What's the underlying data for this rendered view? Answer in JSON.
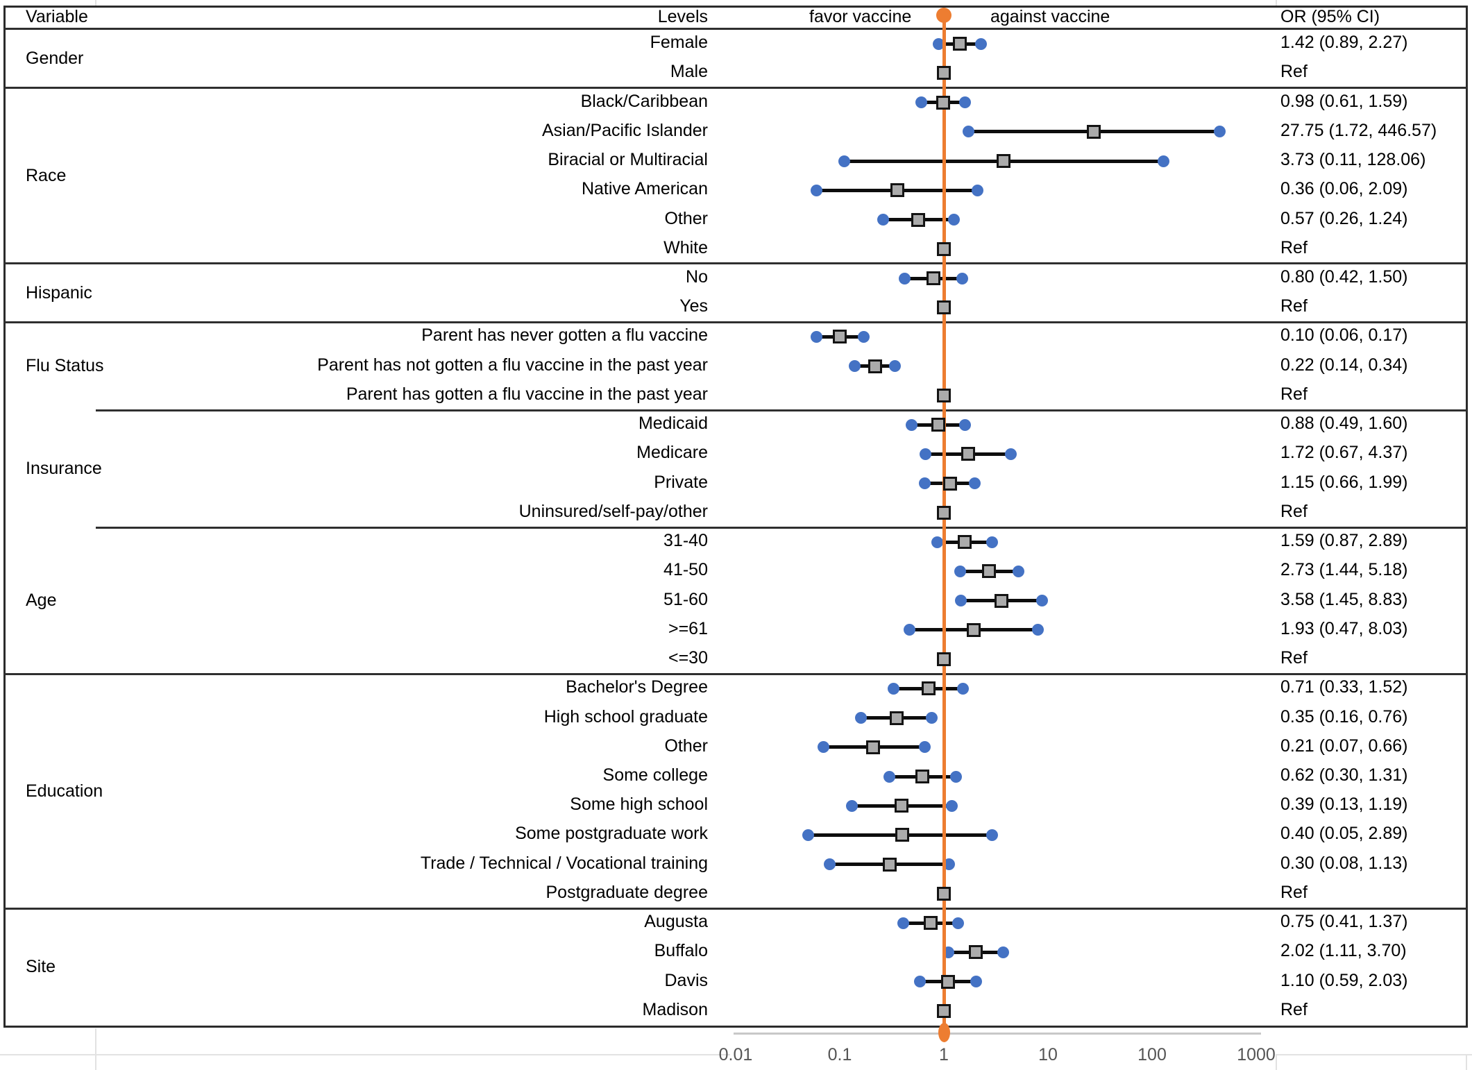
{
  "header": {
    "variable": "Variable",
    "levels": "Levels",
    "favor": "favor vaccine",
    "against": "against vaccine",
    "or_ci": "OR (95% CI)"
  },
  "chart_data": {
    "type": "scatter",
    "variant": "forest-plot",
    "x_scale": "log10",
    "x_axis_range": [
      0.01,
      1000
    ],
    "x_ticks": [
      0.01,
      0.1,
      1,
      10,
      100,
      1000
    ],
    "x_tick_labels": [
      "0.01",
      "0.1",
      "1",
      "10",
      "100",
      "1000"
    ],
    "reference_line_x": 1,
    "legend": {
      "left_of_line": "favor vaccine",
      "right_of_line": "against vaccine"
    },
    "sections": [
      {
        "variable": "Gender",
        "separator_after": "full",
        "rows": [
          {
            "level": "Female",
            "or": 1.42,
            "lo": 0.89,
            "hi": 2.27,
            "or_text": "1.42 (0.89, 2.27)"
          },
          {
            "level": "Male",
            "ref": true,
            "or": 1,
            "or_text": "Ref"
          }
        ]
      },
      {
        "variable": "Race",
        "separator_after": "full",
        "rows": [
          {
            "level": "Black/Caribbean",
            "or": 0.98,
            "lo": 0.61,
            "hi": 1.59,
            "or_text": "0.98 (0.61, 1.59)"
          },
          {
            "level": "Asian/Pacific Islander",
            "or": 27.75,
            "lo": 1.72,
            "hi": 446.57,
            "or_text": "27.75 (1.72, 446.57)"
          },
          {
            "level": "Biracial or Multiracial",
            "or": 3.73,
            "lo": 0.11,
            "hi": 128.06,
            "or_text": "3.73 (0.11, 128.06)"
          },
          {
            "level": "Native American",
            "or": 0.36,
            "lo": 0.06,
            "hi": 2.09,
            "or_text": "0.36 (0.06, 2.09)"
          },
          {
            "level": "Other",
            "or": 0.57,
            "lo": 0.26,
            "hi": 1.24,
            "or_text": "0.57 (0.26, 1.24)"
          },
          {
            "level": "White",
            "ref": true,
            "or": 1,
            "or_text": "Ref"
          }
        ]
      },
      {
        "variable": "Hispanic",
        "separator_after": "full",
        "rows": [
          {
            "level": "No",
            "or": 0.8,
            "lo": 0.42,
            "hi": 1.5,
            "or_text": "0.80 (0.42, 1.50)"
          },
          {
            "level": "Yes",
            "ref": true,
            "or": 1,
            "or_text": "Ref"
          }
        ]
      },
      {
        "variable": "Flu Status",
        "separator_after": "partial",
        "rows": [
          {
            "level": "Parent has never gotten a flu vaccine",
            "or": 0.1,
            "lo": 0.06,
            "hi": 0.17,
            "or_text": "0.10 (0.06, 0.17)"
          },
          {
            "level": "Parent has not gotten a flu vaccine in the past year",
            "or": 0.22,
            "lo": 0.14,
            "hi": 0.34,
            "or_text": "0.22 (0.14, 0.34)"
          },
          {
            "level": "Parent has gotten a flu vaccine in the past year",
            "ref": true,
            "or": 1,
            "or_text": "Ref"
          }
        ]
      },
      {
        "variable": "Insurance",
        "separator_after": "partial",
        "rows": [
          {
            "level": "Medicaid",
            "or": 0.88,
            "lo": 0.49,
            "hi": 1.6,
            "or_text": "0.88 (0.49, 1.60)"
          },
          {
            "level": "Medicare",
            "or": 1.72,
            "lo": 0.67,
            "hi": 4.37,
            "or_text": "1.72 (0.67, 4.37)"
          },
          {
            "level": "Private",
            "or": 1.15,
            "lo": 0.66,
            "hi": 1.99,
            "or_text": "1.15 (0.66, 1.99)"
          },
          {
            "level": "Uninsured/self-pay/other",
            "ref": true,
            "or": 1,
            "or_text": "Ref"
          }
        ]
      },
      {
        "variable": "Age",
        "separator_after": "full",
        "rows": [
          {
            "level": "31-40",
            "or": 1.59,
            "lo": 0.87,
            "hi": 2.89,
            "or_text": "1.59 (0.87, 2.89)"
          },
          {
            "level": "41-50",
            "or": 2.73,
            "lo": 1.44,
            "hi": 5.18,
            "or_text": "2.73 (1.44, 5.18)"
          },
          {
            "level": "51-60",
            "or": 3.58,
            "lo": 1.45,
            "hi": 8.83,
            "or_text": "3.58 (1.45, 8.83)"
          },
          {
            "level": ">=61",
            "or": 1.93,
            "lo": 0.47,
            "hi": 8.03,
            "or_text": "1.93 (0.47, 8.03)"
          },
          {
            "level": "<=30",
            "ref": true,
            "or": 1,
            "or_text": "Ref"
          }
        ]
      },
      {
        "variable": "Education",
        "separator_after": "full",
        "rows": [
          {
            "level": "Bachelor's Degree",
            "or": 0.71,
            "lo": 0.33,
            "hi": 1.52,
            "or_text": "0.71 (0.33, 1.52)"
          },
          {
            "level": "High school graduate",
            "or": 0.35,
            "lo": 0.16,
            "hi": 0.76,
            "or_text": "0.35 (0.16, 0.76)"
          },
          {
            "level": "Other",
            "or": 0.21,
            "lo": 0.07,
            "hi": 0.66,
            "or_text": "0.21 (0.07, 0.66)"
          },
          {
            "level": "Some college",
            "or": 0.62,
            "lo": 0.3,
            "hi": 1.31,
            "or_text": "0.62 (0.30, 1.31)"
          },
          {
            "level": "Some high school",
            "or": 0.39,
            "lo": 0.13,
            "hi": 1.19,
            "or_text": "0.39 (0.13, 1.19)"
          },
          {
            "level": "Some postgraduate work",
            "or": 0.4,
            "lo": 0.05,
            "hi": 2.89,
            "or_text": "0.40 (0.05, 2.89)"
          },
          {
            "level": "Trade / Technical / Vocational training",
            "or": 0.3,
            "lo": 0.08,
            "hi": 1.13,
            "or_text": "0.30 (0.08, 1.13)"
          },
          {
            "level": "Postgraduate degree",
            "ref": true,
            "or": 1,
            "or_text": "Ref"
          }
        ]
      },
      {
        "variable": "Site",
        "separator_after": "none",
        "rows": [
          {
            "level": "Augusta",
            "or": 0.75,
            "lo": 0.41,
            "hi": 1.37,
            "or_text": "0.75 (0.41, 1.37)"
          },
          {
            "level": "Buffalo",
            "or": 2.02,
            "lo": 1.11,
            "hi": 3.7,
            "or_text": "2.02 (1.11, 3.70)"
          },
          {
            "level": "Davis",
            "or": 1.1,
            "lo": 0.59,
            "hi": 2.03,
            "or_text": "1.10 (0.59, 2.03)"
          },
          {
            "level": "Madison",
            "ref": true,
            "or": 1,
            "or_text": "Ref"
          }
        ]
      }
    ],
    "colors": {
      "ci_dot": "#4472C4",
      "or_square_fill": "#ABABAB",
      "or_square_border": "#141414",
      "ci_line": "#0d0d0d",
      "reference_line": "#ED7D31",
      "axis_text": "#555555",
      "axis_line": "#C8C8C8",
      "table_border": "#2b2b2b",
      "gridline": "#E2E2E2"
    }
  }
}
